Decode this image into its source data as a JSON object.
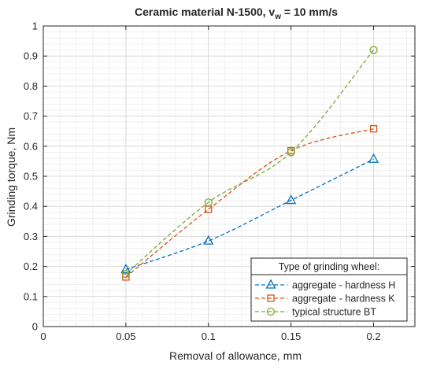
{
  "chart_data": {
    "type": "line",
    "title": "Ceramic material N-1500, v",
    "title_sub": "w",
    "title_tail": " = 10 mm/s",
    "xlabel": "Removal of allowance, mm",
    "ylabel": "Grinding torque, Nm",
    "xlim": [
      0,
      0.225
    ],
    "ylim": [
      0,
      1
    ],
    "xticks": [
      0,
      0.05,
      0.1,
      0.15,
      0.2
    ],
    "xtick_labels": [
      "0",
      "0.05",
      "0.1",
      "0.15",
      "0.2"
    ],
    "yticks": [
      0,
      0.1,
      0.2,
      0.3,
      0.4,
      0.5,
      0.6,
      0.7,
      0.8,
      0.9,
      1
    ],
    "ytick_labels": [
      "0",
      "0.1",
      "0.2",
      "0.3",
      "0.4",
      "0.5",
      "0.6",
      "0.7",
      "0.8",
      "0.9",
      "1"
    ],
    "grid": true,
    "minor_grid": true,
    "legend_title": "Type of grinding wheel:",
    "legend_position": "bottom-right",
    "x": [
      0.05,
      0.1,
      0.15,
      0.2
    ],
    "series": [
      {
        "name": "aggregate - hardness H",
        "values": [
          0.19,
          0.285,
          0.42,
          0.557
        ],
        "color": "#0072BD",
        "marker": "triangle",
        "line": "dashed"
      },
      {
        "name": "aggregate - hardness K",
        "values": [
          0.165,
          0.39,
          0.585,
          0.658
        ],
        "color": "#D95319",
        "marker": "square",
        "line": "dashed"
      },
      {
        "name": "typical structure BT",
        "values": [
          0.175,
          0.413,
          0.58,
          0.92
        ],
        "color": "#77AC30",
        "marker": "circle",
        "line": "dashed"
      }
    ]
  }
}
